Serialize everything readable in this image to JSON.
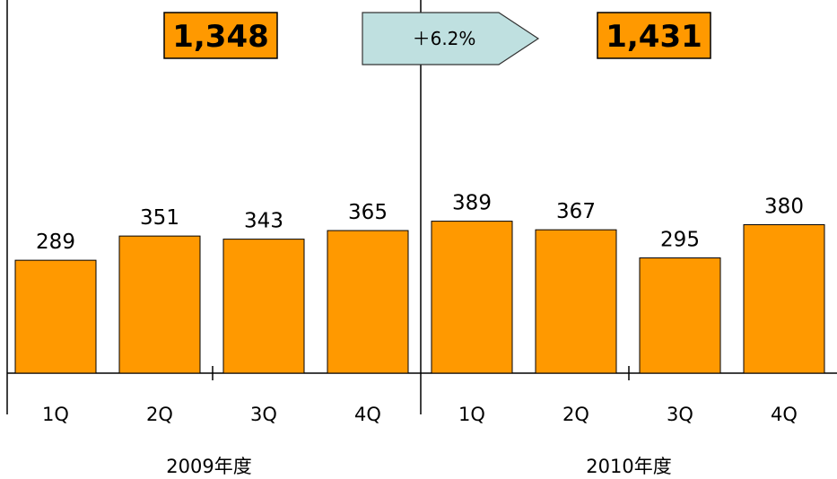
{
  "chart_data": {
    "type": "bar",
    "ylim": [
      0,
      420
    ],
    "grid": false,
    "groups": [
      {
        "label": "2009年度",
        "total_label": "1,348",
        "categories": [
          "1Q",
          "2Q",
          "3Q",
          "4Q"
        ],
        "values": [
          289,
          351,
          343,
          365
        ]
      },
      {
        "label": "2010年度",
        "total_label": "1,431",
        "categories": [
          "1Q",
          "2Q",
          "3Q",
          "4Q"
        ],
        "values": [
          389,
          367,
          295,
          380
        ]
      }
    ],
    "growth_label": "＋6.2%",
    "colors": {
      "bar": "#FF9900",
      "total_box": "#FF9900",
      "growth_arrow": "#BFE0E0"
    }
  }
}
